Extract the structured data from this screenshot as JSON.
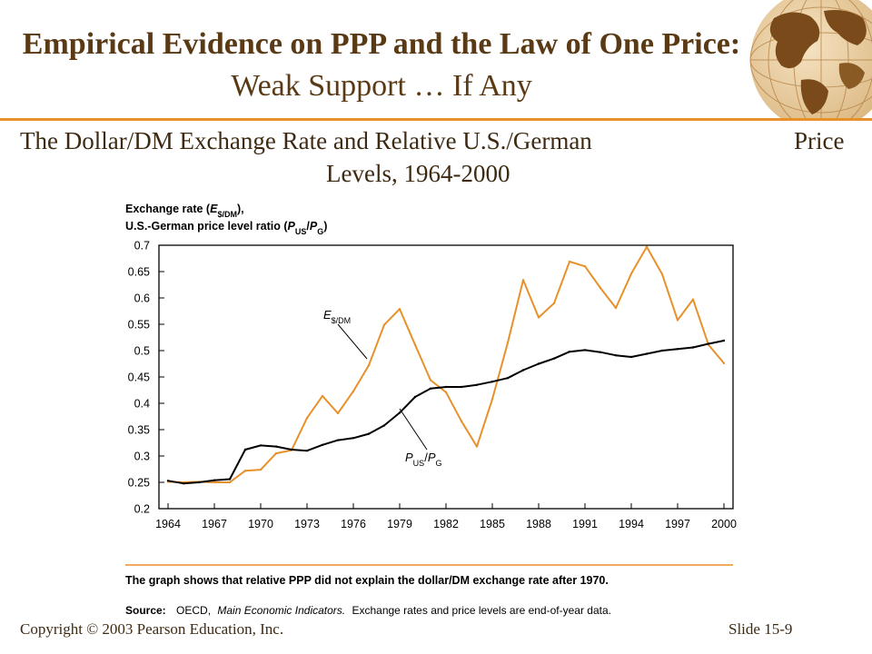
{
  "slide": {
    "title_bold": "Empirical Evidence on PPP and the Law of One Price:",
    "title_regular": "Weak Support … If Any",
    "subtitle_line1": "The Dollar/DM Exchange Rate and Relative U.S./German",
    "subtitle_price": "Price",
    "subtitle_line2": "Levels, 1964-2000",
    "copyright": "Copyright © 2003 Pearson Education, Inc.",
    "slide_number": "Slide 15-9"
  },
  "chart_data": {
    "type": "line",
    "ylabel_line1": "Exchange rate (E$/DM),",
    "ylabel_line2": "U.S.-German price level ratio (PUS/PG)",
    "ylim": [
      0.2,
      0.7
    ],
    "xlim": [
      1964,
      2000
    ],
    "yticks": [
      "0.2",
      "0.25",
      "0.3",
      "0.35",
      "0.4",
      "0.45",
      "0.5",
      "0.55",
      "0.6",
      "0.65",
      "0.7"
    ],
    "xticks": [
      "1964",
      "1967",
      "1970",
      "1973",
      "1976",
      "1979",
      "1982",
      "1985",
      "1988",
      "1991",
      "1994",
      "1997",
      "2000"
    ],
    "grid": false,
    "colors": {
      "exchange_rate": "#e8912a",
      "price_ratio": "#000000"
    },
    "series": [
      {
        "name": "E$/DM",
        "x": [
          1964,
          1965,
          1966,
          1967,
          1968,
          1969,
          1970,
          1971,
          1972,
          1973,
          1974,
          1975,
          1976,
          1977,
          1978,
          1979,
          1980,
          1981,
          1982,
          1983,
          1984,
          1985,
          1986,
          1987,
          1988,
          1989,
          1990,
          1991,
          1992,
          1993,
          1994,
          1995,
          1996,
          1997,
          1998,
          1999,
          2000
        ],
        "values": [
          0.251,
          0.25,
          0.251,
          0.25,
          0.25,
          0.272,
          0.274,
          0.305,
          0.311,
          0.372,
          0.414,
          0.381,
          0.423,
          0.472,
          0.549,
          0.579,
          0.511,
          0.444,
          0.421,
          0.366,
          0.318,
          0.408,
          0.515,
          0.634,
          0.563,
          0.59,
          0.669,
          0.66,
          0.619,
          0.581,
          0.646,
          0.697,
          0.645,
          0.558,
          0.597,
          0.511,
          0.476
        ]
      },
      {
        "name": "PUS/PG",
        "x": [
          1964,
          1965,
          1966,
          1967,
          1968,
          1969,
          1970,
          1971,
          1972,
          1973,
          1974,
          1975,
          1976,
          1977,
          1978,
          1979,
          1980,
          1981,
          1982,
          1983,
          1984,
          1985,
          1986,
          1987,
          1988,
          1989,
          1990,
          1991,
          1992,
          1993,
          1994,
          1995,
          1996,
          1997,
          1998,
          1999,
          2000
        ],
        "values": [
          0.253,
          0.248,
          0.25,
          0.254,
          0.256,
          0.312,
          0.32,
          0.318,
          0.312,
          0.31,
          0.321,
          0.33,
          0.334,
          0.342,
          0.358,
          0.382,
          0.412,
          0.428,
          0.431,
          0.431,
          0.435,
          0.441,
          0.448,
          0.463,
          0.475,
          0.485,
          0.498,
          0.501,
          0.497,
          0.491,
          0.488,
          0.494,
          0.5,
          0.503,
          0.506,
          0.513,
          0.519
        ]
      }
    ],
    "label_exchange_rate": "E$/DM",
    "label_price_ratio": "PUS/PG",
    "caption": "The graph shows that relative PPP did not explain the dollar/DM exchange rate after 1970.",
    "source_label": "Source:",
    "source_text_pre": "OECD,",
    "source_italic": "Main Economic Indicators.",
    "source_text_post": "Exchange rates and price levels are end-of-year data."
  }
}
